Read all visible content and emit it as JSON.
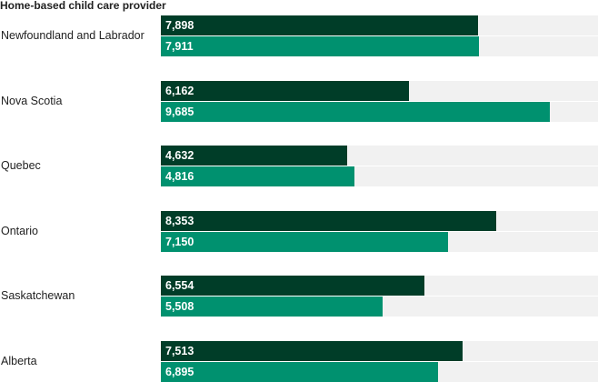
{
  "colors": {
    "series_a": "#003d28",
    "series_b": "#00916f",
    "track": "#f1f1f1"
  },
  "chart_data": {
    "type": "bar",
    "orientation": "horizontal",
    "title": "Home-based child care provider",
    "categories": [
      "Newfoundland and Labrador",
      "Nova Scotia",
      "Quebec",
      "Ontario",
      "Saskatchewan",
      "Alberta"
    ],
    "series": [
      {
        "values": [
          7898,
          6162,
          4632,
          8353,
          6554,
          7513
        ],
        "labels": [
          "7,898",
          "6,162",
          "4,632",
          "8,353",
          "6,554",
          "7,513"
        ]
      },
      {
        "values": [
          7911,
          9685,
          4816,
          7150,
          5508,
          6895
        ],
        "labels": [
          "7,911",
          "9,685",
          "4,816",
          "7,150",
          "5,508",
          "6,895"
        ]
      }
    ],
    "xlim": [
      0,
      10875
    ],
    "grid": false,
    "legend": false
  }
}
